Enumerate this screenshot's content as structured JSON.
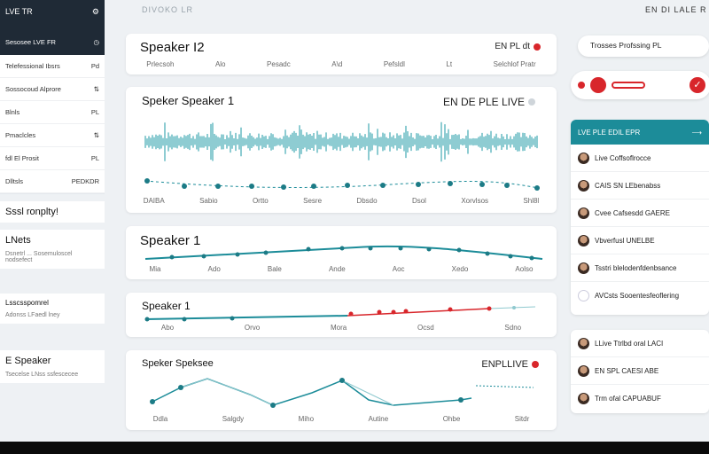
{
  "topbar": {
    "center_title": "DIVOKO LR",
    "right_title": "EN DI LALE R"
  },
  "sidebar": {
    "header_label": "LVE TR",
    "active_item": "Sesosee LVE FR",
    "rows": [
      {
        "label": "Telefessional Ibsrs",
        "value": "Pd"
      },
      {
        "label": "Sossocoud Alprore",
        "value": "⇅"
      },
      {
        "label": "Blnls",
        "value": "PL"
      },
      {
        "label": "Pmaclcles",
        "value": "⇅"
      },
      {
        "label": "fdl El Prosit",
        "value": "PL"
      },
      {
        "label": "Dlltsls",
        "value": "PEDKDR"
      }
    ],
    "cards": [
      {
        "big": "Sssl ronplty!",
        "small": ""
      },
      {
        "big": "LNets",
        "small": "Dsnetrl ... Sosemuloscel nodsefect"
      },
      {
        "big": "Lsscsspomrel",
        "small": "Adonss LFaedl lney"
      },
      {
        "big": "E Speaker",
        "small": "Tsecelse LNss ssfescecee"
      }
    ]
  },
  "panels": [
    {
      "title": "Speaker I2",
      "live": "EN PL dt",
      "ticks": [
        "Prlecsoh",
        "Alo",
        "Pesadc",
        "A\\d",
        "Pefsldl",
        "Lt",
        "Selchlof Pratr"
      ]
    },
    {
      "title": "Speker Speaker 1",
      "live": "EN DE PLE LIVE",
      "ticks": [
        "DAIBA",
        "Sabio",
        "Ortto",
        "Sesre",
        "Dbsdo",
        "Dsol",
        "Xorvlsos",
        "Shl8l"
      ]
    },
    {
      "title": "Speaker 1",
      "live": "",
      "ticks": [
        "Mia",
        "Ado",
        "Bale",
        "Ande",
        "Aoc",
        "Xedo",
        "Aolso"
      ]
    },
    {
      "title": "Speaker 1",
      "live": "",
      "ticks": [
        "Abo",
        "Orvo",
        "Mora",
        "Ocsd",
        "Sdno"
      ]
    },
    {
      "title": "Speker Speksee",
      "live": "ENPLLIVE",
      "ticks": [
        "Ddla",
        "Salgdy",
        "Miho",
        "Autine",
        "Ohbe",
        "Sitdr"
      ]
    }
  ],
  "right": {
    "pill_label": "Trosses Profssing PL",
    "header": "LVE PLE EDIL EPR",
    "list1": [
      "Live Coffsoflrocce",
      "CAIS SN LEbenabss",
      "Cvee Cafsesdd GAERE",
      "Vbverfusl UNELBE",
      "Tsstri blelodenfdenbsance",
      "AVCsts Sooentesfeoflering"
    ],
    "list2": [
      "LLive Ttrlbd oral LACI",
      "EN SPL CAESI ABE",
      "Trm ofal CAPUABUF"
    ]
  },
  "colors": {
    "teal": "#1c8c99",
    "red": "#d8262b",
    "dark": "#1f2a36"
  }
}
